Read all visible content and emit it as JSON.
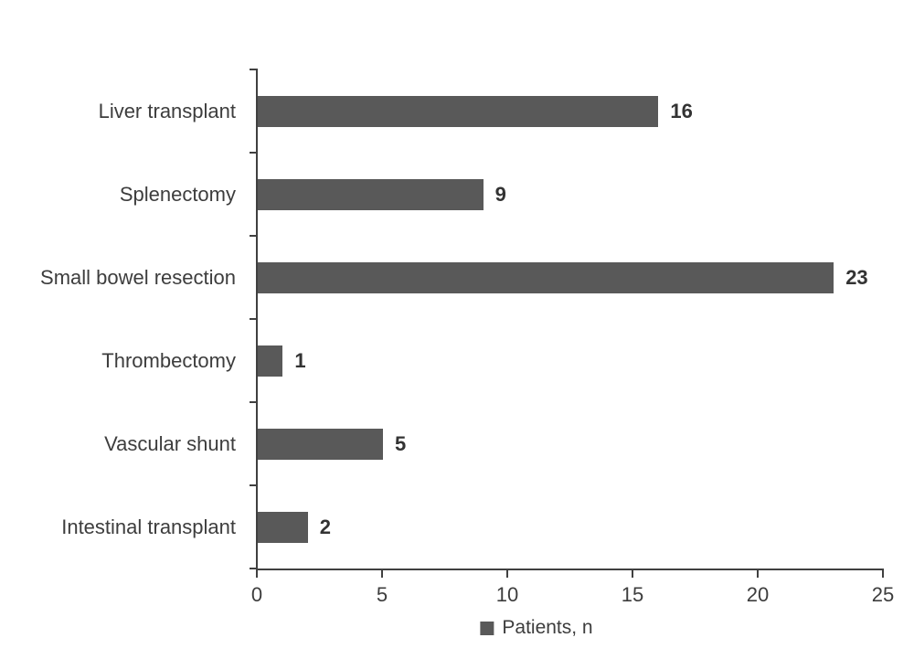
{
  "chart_data": {
    "type": "bar",
    "orientation": "horizontal",
    "title": "",
    "xlabel": "",
    "ylabel": "",
    "categories": [
      "Liver transplant",
      "Splenectomy",
      "Small bowel resection",
      "Thrombectomy",
      "Vascular shunt",
      "Intestinal transplant"
    ],
    "series": [
      {
        "name": "Patients, n",
        "values": [
          16,
          9,
          23,
          1,
          5,
          2
        ]
      }
    ],
    "value_labels": [
      "16",
      "9",
      "23",
      "1",
      "5",
      "2"
    ],
    "xlim": [
      0,
      25
    ],
    "xticks": [
      0,
      5,
      10,
      15,
      20,
      25
    ],
    "grid": false,
    "legend_position": "bottom-center",
    "bar_color": "#595959",
    "axis_color": "#404040",
    "label_color": "#3d3d3d",
    "value_label_color": "#333333",
    "background_color": "#ffffff"
  },
  "legend": {
    "label": "Patients, n"
  }
}
